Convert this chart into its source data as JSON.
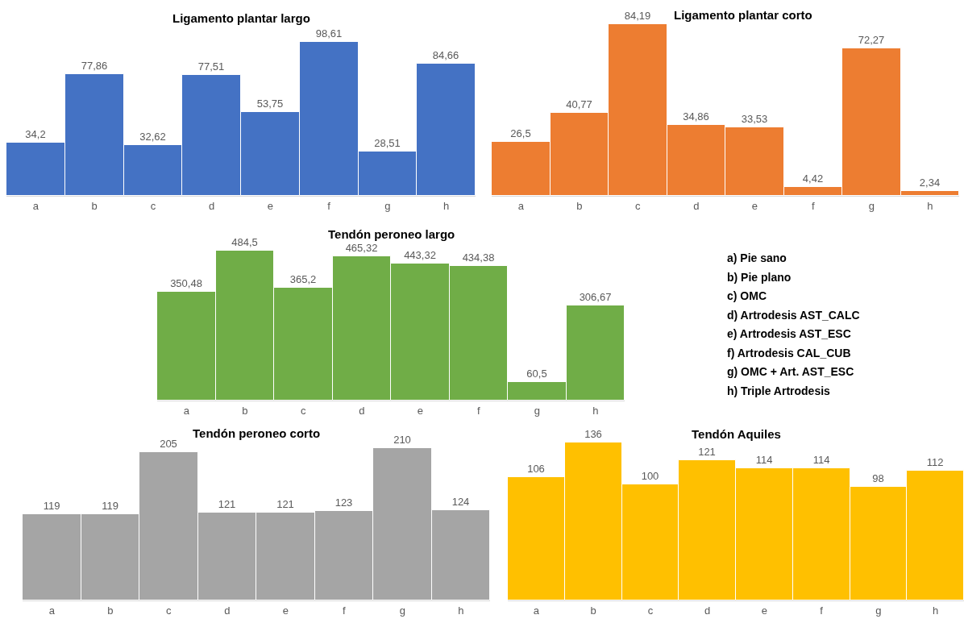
{
  "chart_data": [
    {
      "type": "bar",
      "title": "Ligamento plantar largo",
      "categories": [
        "a",
        "b",
        "c",
        "d",
        "e",
        "f",
        "g",
        "h"
      ],
      "color": "#4472c4",
      "values": [
        34.2,
        77.86,
        32.62,
        77.51,
        53.75,
        98.61,
        28.51,
        84.66
      ],
      "value_labels": [
        "34,2",
        "77,86",
        "32,62",
        "77,51",
        "53,75",
        "98,61",
        "28,51",
        "84,66"
      ]
    },
    {
      "type": "bar",
      "title": "Ligamento plantar corto",
      "categories": [
        "a",
        "b",
        "c",
        "d",
        "e",
        "f",
        "g",
        "h"
      ],
      "color": "#ed7d31",
      "values": [
        26.5,
        40.77,
        84.19,
        34.86,
        33.53,
        4.42,
        72.27,
        2.34
      ],
      "value_labels": [
        "26,5",
        "40,77",
        "84,19",
        "34,86",
        "33,53",
        "4,42",
        "72,27",
        "2,34"
      ]
    },
    {
      "type": "bar",
      "title": "Tendón peroneo largo",
      "categories": [
        "a",
        "b",
        "c",
        "d",
        "e",
        "f",
        "g",
        "h"
      ],
      "color": "#70ad47",
      "values": [
        350.48,
        484.5,
        365.2,
        465.32,
        443.32,
        434.38,
        60.5,
        306.67
      ],
      "value_labels": [
        "350,48",
        "484,5",
        "365,2",
        "465,32",
        "443,32",
        "434,38",
        "60,5",
        "306,67"
      ]
    },
    {
      "type": "other",
      "annotations": [
        "a) Pie sano",
        "b) Pie plano",
        "c) OMC",
        "d) Artrodesis AST_CALC",
        "e) Artrodesis AST_ESC",
        "f) Artrodesis CAL_CUB",
        "g) OMC + Art. AST_ESC",
        "h) Triple Artrodesis"
      ]
    },
    {
      "type": "bar",
      "title": "Tendón peroneo corto",
      "categories": [
        "a",
        "b",
        "c",
        "d",
        "e",
        "f",
        "g",
        "h"
      ],
      "color": "#a5a5a5",
      "values": [
        119,
        119,
        205,
        121,
        121,
        123,
        210,
        124
      ],
      "value_labels": [
        "119",
        "119",
        "205",
        "121",
        "121",
        "123",
        "210",
        "124"
      ]
    },
    {
      "type": "bar",
      "title": "Tendón Aquiles",
      "categories": [
        "a",
        "b",
        "c",
        "d",
        "e",
        "f",
        "g",
        "h"
      ],
      "color": "#ffc000",
      "values": [
        106,
        136,
        100,
        121,
        114,
        114,
        98,
        112
      ],
      "value_labels": [
        "106",
        "136",
        "100",
        "121",
        "114",
        "114",
        "98",
        "112"
      ]
    }
  ]
}
